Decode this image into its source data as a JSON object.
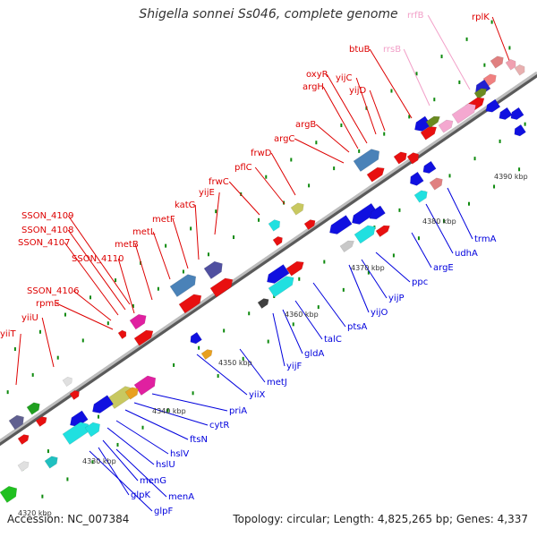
{
  "title": "Shigella sonnei Ss046, complete genome",
  "accession": "Accession: NC_007384",
  "summary": "Topology: circular; Length: 4,825,265 bp; Genes: 4,337",
  "colors": {
    "backbone": "#8c8c8c",
    "label_red": "#dd0000",
    "label_blue": "#0000dd",
    "label_pink": "#f2a0c8",
    "forward_gene": "#e81010",
    "reverse_gene": "#1010e0",
    "rna_pink": "#f4a8d0",
    "steelblue_gene": "#4a82b8",
    "cyan_gene": "#20e0e0",
    "tick_dot": "#0e8a0e"
  },
  "kbp_labels": [
    "4330 kbp",
    "4340 kbp",
    "4350 kbp",
    "4360 kbp",
    "4370 kbp",
    "4380 kbp",
    "4390 kbp",
    "4320 kbp"
  ],
  "genes_top": [
    "rplK",
    "rrfB",
    "rrsB",
    "btuB",
    "oxyR",
    "yijC",
    "argH",
    "yijD",
    "argB",
    "argC",
    "frwD",
    "pflC",
    "frwC",
    "yijE",
    "katG",
    "metF",
    "metL",
    "metB",
    "SSON_4109",
    "SSON_4108",
    "SSON_4107",
    "SSON_4110",
    "SSON_4106",
    "rpmE",
    "yiiU",
    "yiiT"
  ],
  "genes_bottom": [
    "trmA",
    "udhA",
    "argE",
    "ppc",
    "yijP",
    "yijO",
    "ptsA",
    "talC",
    "gldA",
    "yijF",
    "metJ",
    "yiiX",
    "priA",
    "cytR",
    "ftsN",
    "hslV",
    "hslU",
    "menG",
    "menA",
    "glpK",
    "glpF"
  ]
}
